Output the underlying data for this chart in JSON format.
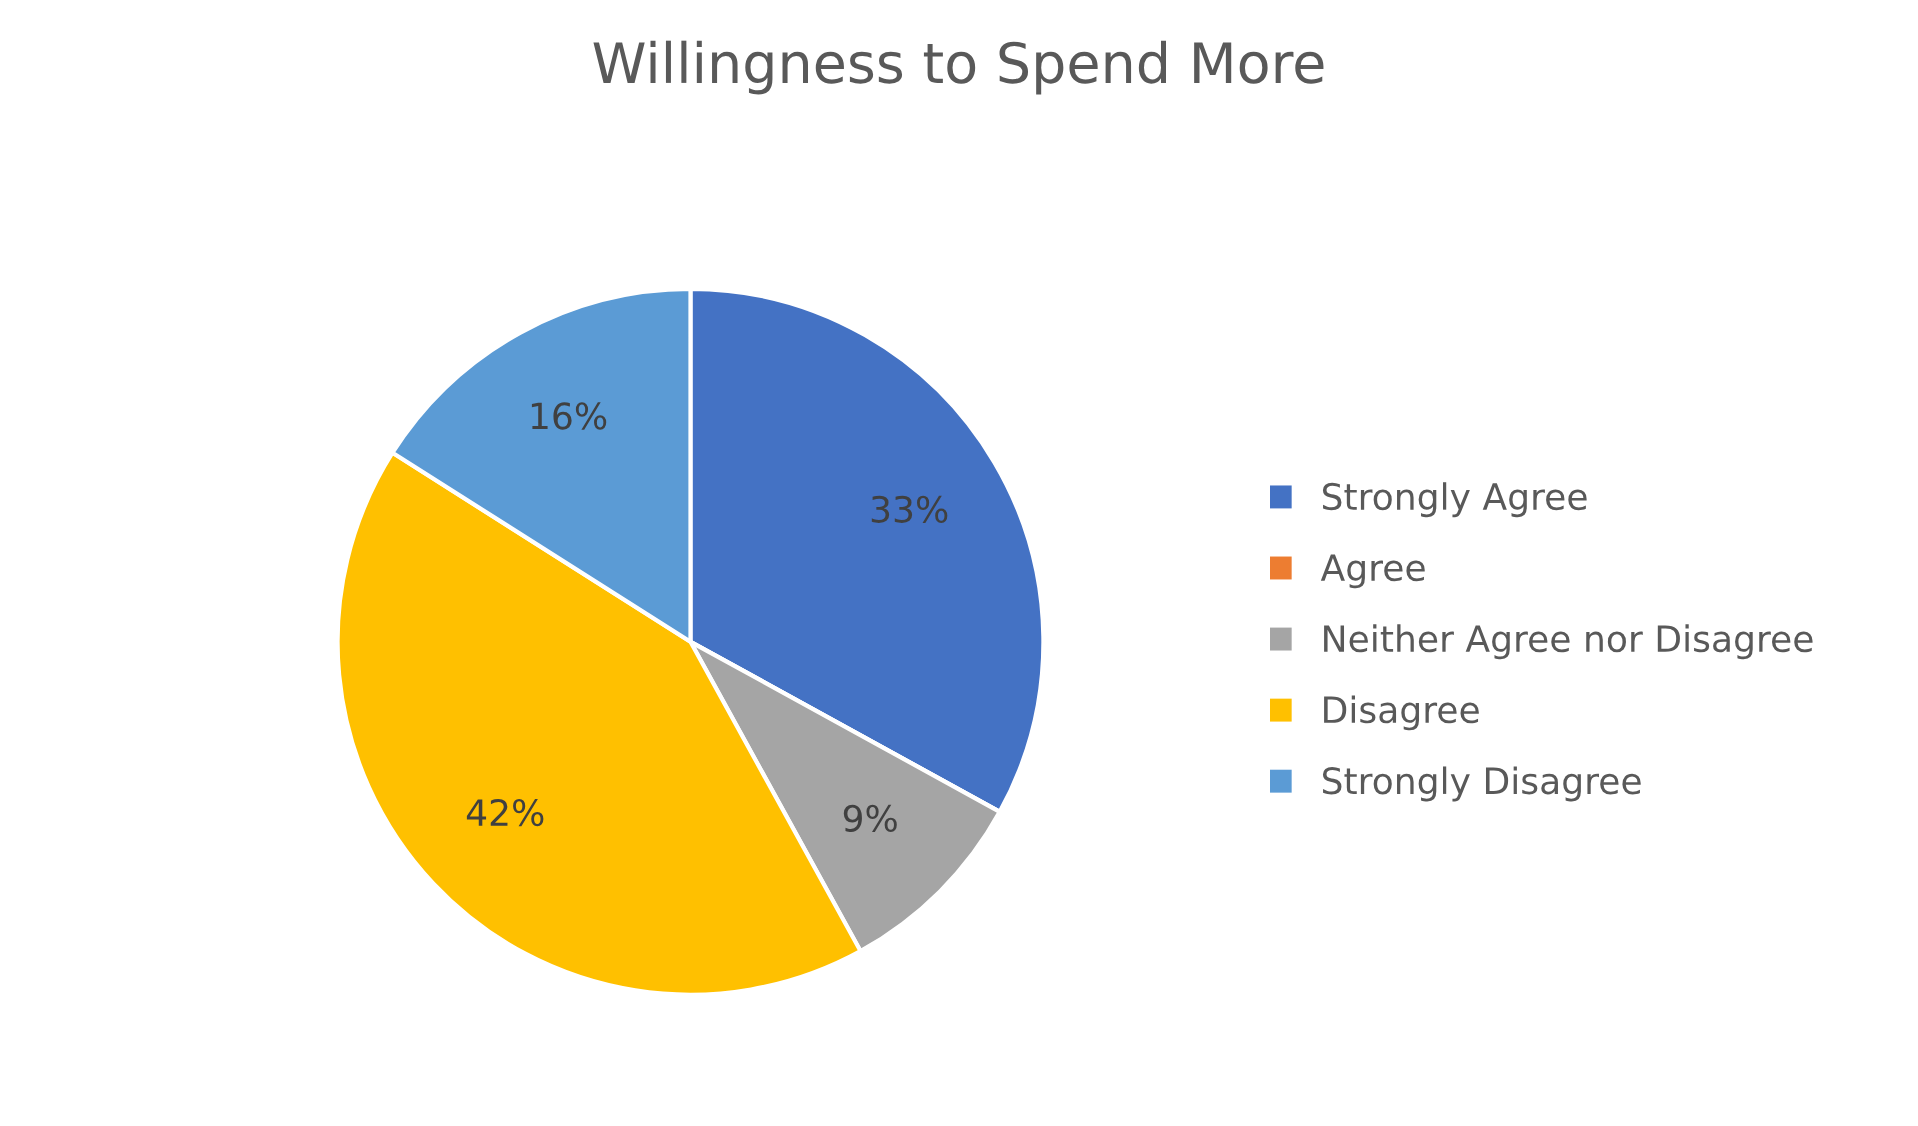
{
  "chart_data": {
    "type": "pie",
    "title": "Willingness to Spend More",
    "categories": [
      "Strongly Agree",
      "Agree",
      "Neither Agree nor Disagree",
      "Disagree",
      "Strongly Disagree"
    ],
    "values": [
      33,
      0,
      9,
      42,
      16
    ],
    "colors": [
      "#4472c4",
      "#ed7d31",
      "#a5a5a5",
      "#ffc000",
      "#5b9bd5"
    ],
    "value_labels": [
      "33%",
      null,
      "9%",
      "42%",
      "16%"
    ],
    "legend": "right"
  }
}
